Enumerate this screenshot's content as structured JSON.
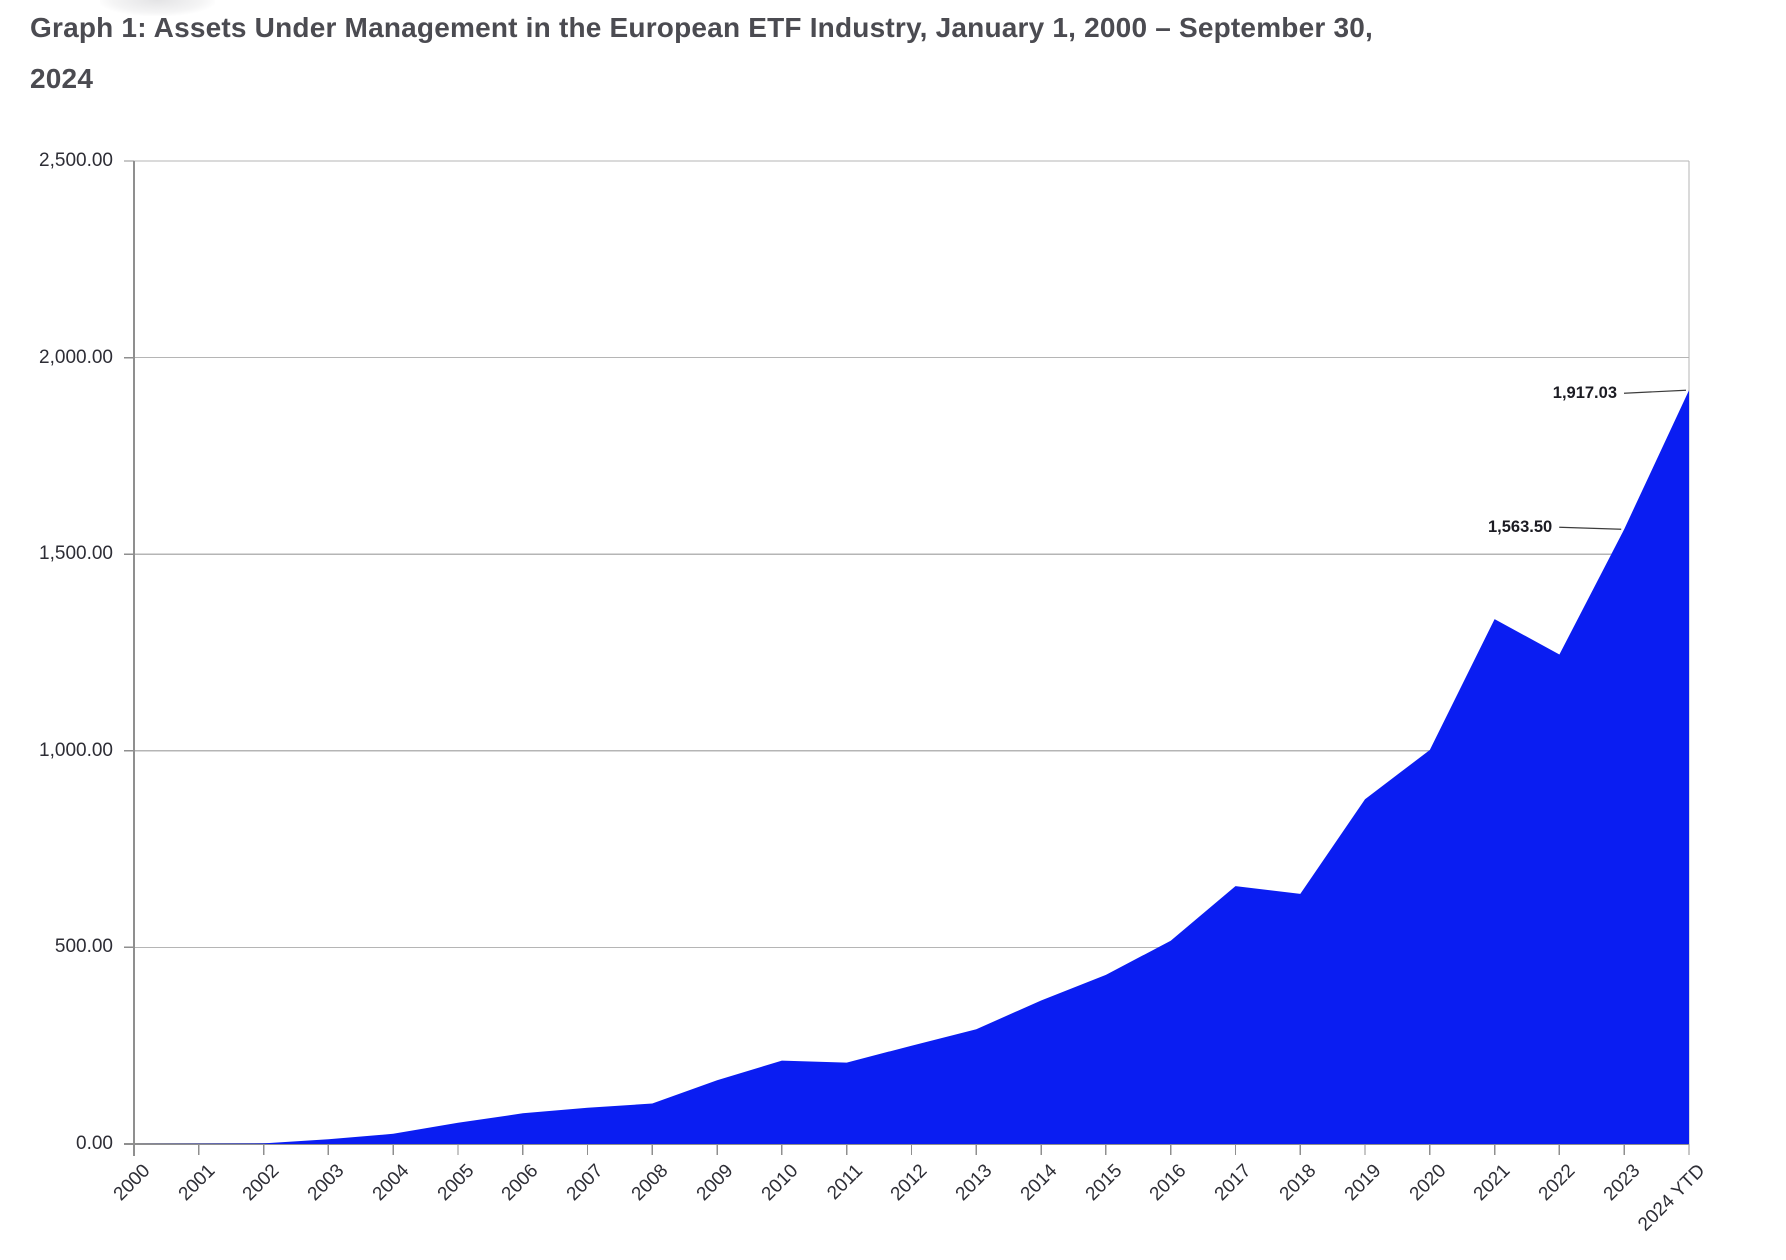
{
  "title_line1": "Graph 1: Assets Under Management in the European ETF Industry, January 1, 2000 – September 30,",
  "title_line2": "2024",
  "chart_data": {
    "type": "area",
    "title": "Graph 1: Assets Under Management in the European ETF Industry, January 1, 2000 – September 30, 2024",
    "xlabel": "",
    "ylabel": "",
    "categories": [
      "2000",
      "2001",
      "2002",
      "2003",
      "2004",
      "2005",
      "2006",
      "2007",
      "2008",
      "2009",
      "2010",
      "2011",
      "2012",
      "2013",
      "2014",
      "2015",
      "2016",
      "2017",
      "2018",
      "2019",
      "2020",
      "2021",
      "2022",
      "2023",
      "2024 YTD"
    ],
    "values": [
      0,
      0.5,
      1.5,
      12,
      26,
      54,
      78,
      92,
      103,
      162,
      212,
      207,
      250,
      292,
      365,
      430,
      517,
      656,
      636,
      877,
      1002,
      1335,
      1245,
      1563.5,
      1917.03
    ],
    "ylim": [
      0,
      2500
    ],
    "y_tick_step": 500,
    "y_tick_labels": [
      "0.00",
      "500.00",
      "1,000.00",
      "1,500.00",
      "2,000.00",
      "2,500.00"
    ],
    "grid": "horizontal",
    "legend": "none",
    "area_color": "#0a1df2",
    "grid_color": "#b5b5b5",
    "axis_color": "#8f8f8f",
    "callouts": [
      {
        "category": "2024 YTD",
        "index": 24,
        "label": "1,917.03"
      },
      {
        "category": "2023",
        "index": 23,
        "label": "1,563.50"
      }
    ]
  }
}
